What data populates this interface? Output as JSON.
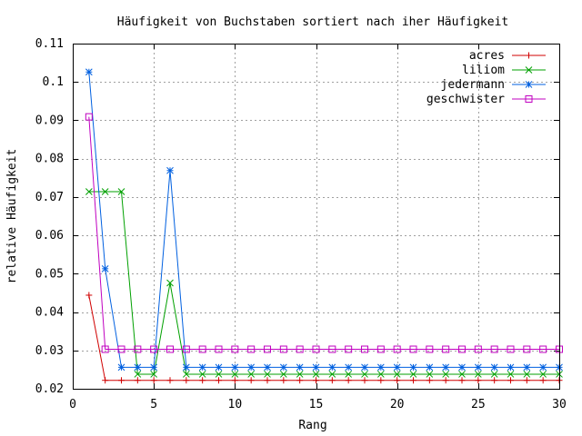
{
  "chart_data": {
    "type": "line",
    "title": "Häufigkeit von Buchstaben sortiert nach iher Häufigkeit",
    "xlabel": "Rang",
    "ylabel": "relative Häufigkeit",
    "xlim": [
      0,
      30
    ],
    "ylim": [
      0.02,
      0.11
    ],
    "xticks": [
      0,
      5,
      10,
      15,
      20,
      25,
      30
    ],
    "xtick_labels": [
      "0",
      "5",
      "10",
      "15",
      "20",
      "25",
      "30"
    ],
    "yticks": [
      0.02,
      0.03,
      0.04,
      0.05,
      0.06,
      0.07,
      0.08,
      0.09,
      0.1,
      0.11
    ],
    "ytick_labels": [
      "0.02",
      "0.03",
      "0.04",
      "0.05",
      "0.06",
      "0.07",
      "0.08",
      "0.09",
      "0.1",
      "0.11"
    ],
    "grid": true,
    "legend_position": "top-right",
    "x": [
      1,
      2,
      3,
      4,
      5,
      6,
      7,
      8,
      9,
      10,
      11,
      12,
      13,
      14,
      15,
      16,
      17,
      18,
      19,
      20,
      21,
      22,
      23,
      24,
      25,
      26,
      27,
      28,
      29,
      30
    ],
    "series": [
      {
        "name": "acres",
        "color": "#d00000",
        "marker": "plus",
        "values": [
          0.0444,
          0.0222,
          0.0222,
          0.0222,
          0.0222,
          0.0222,
          0.0222,
          0.0222,
          0.0222,
          0.0222,
          0.0222,
          0.0222,
          0.0222,
          0.0222,
          0.0222,
          0.0222,
          0.0222,
          0.0222,
          0.0222,
          0.0222,
          0.0222,
          0.0222,
          0.0222,
          0.0222,
          0.0222,
          0.0222,
          0.0222,
          0.0222,
          0.0222,
          0.0222
        ]
      },
      {
        "name": "liliom",
        "color": "#00a000",
        "marker": "cross",
        "values": [
          0.0714,
          0.0714,
          0.0714,
          0.0238,
          0.0238,
          0.0476,
          0.0238,
          0.0238,
          0.0238,
          0.0238,
          0.0238,
          0.0238,
          0.0238,
          0.0238,
          0.0238,
          0.0238,
          0.0238,
          0.0238,
          0.0238,
          0.0238,
          0.0238,
          0.0238,
          0.0238,
          0.0238,
          0.0238,
          0.0238,
          0.0238,
          0.0238,
          0.0238,
          0.0238
        ]
      },
      {
        "name": "jedermann",
        "color": "#0060e0",
        "marker": "star",
        "values": [
          0.1026,
          0.0513,
          0.0256,
          0.0256,
          0.0256,
          0.0769,
          0.0256,
          0.0256,
          0.0256,
          0.0256,
          0.0256,
          0.0256,
          0.0256,
          0.0256,
          0.0256,
          0.0256,
          0.0256,
          0.0256,
          0.0256,
          0.0256,
          0.0256,
          0.0256,
          0.0256,
          0.0256,
          0.0256,
          0.0256,
          0.0256,
          0.0256,
          0.0256,
          0.0256
        ]
      },
      {
        "name": "geschwister",
        "color": "#c000c0",
        "marker": "square",
        "values": [
          0.0909,
          0.0303,
          0.0303,
          0.0303,
          0.0303,
          0.0303,
          0.0303,
          0.0303,
          0.0303,
          0.0303,
          0.0303,
          0.0303,
          0.0303,
          0.0303,
          0.0303,
          0.0303,
          0.0303,
          0.0303,
          0.0303,
          0.0303,
          0.0303,
          0.0303,
          0.0303,
          0.0303,
          0.0303,
          0.0303,
          0.0303,
          0.0303,
          0.0303,
          0.0303
        ]
      }
    ]
  }
}
